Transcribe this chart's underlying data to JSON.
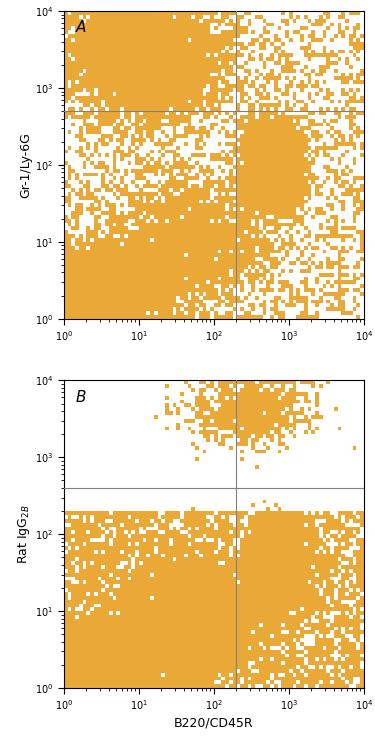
{
  "dot_color": "#E8A020",
  "dot_color_rgb": [
    232,
    160,
    32
  ],
  "bg_color": "#FFFFFF",
  "line_color": "#808080",
  "xlim_log": [
    1,
    10000
  ],
  "ylim_log": [
    1,
    10000
  ],
  "xlabel": "B220/CD45R",
  "ylabel_A": "Gr-1/Ly-6G",
  "ylabel_B": "Rat IgG$_{2B}$",
  "label_A": "A",
  "label_B": "B",
  "quadrant_x_A": 200,
  "quadrant_y_A": 500,
  "quadrant_x_B": 200,
  "quadrant_y_B": 400,
  "n_points_A": 25000,
  "n_points_B": 30000,
  "seed_A": 42,
  "seed_B": 99,
  "tick_fontsize": 7,
  "label_fontsize": 9,
  "panel_label_fontsize": 11,
  "grid_bins": 80
}
